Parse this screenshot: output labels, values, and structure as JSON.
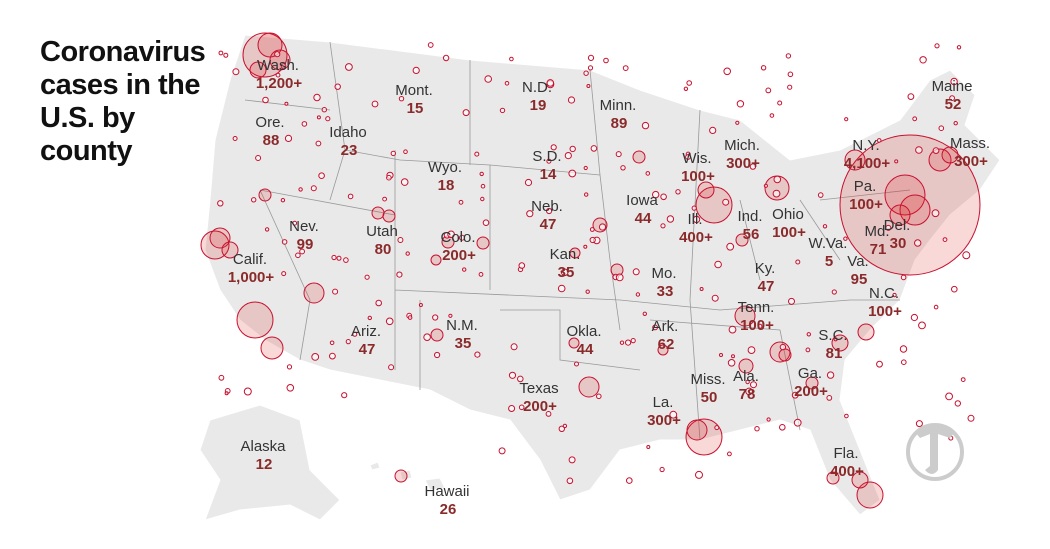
{
  "title": "Coronavirus cases in the U.S. by county",
  "states": [
    {
      "name": "Wash.",
      "count": "1,200+"
    },
    {
      "name": "Ore.",
      "count": "88"
    },
    {
      "name": "Idaho",
      "count": "23"
    },
    {
      "name": "Mont.",
      "count": "15"
    },
    {
      "name": "N.D.",
      "count": "19"
    },
    {
      "name": "Minn.",
      "count": "89"
    },
    {
      "name": "S.D.",
      "count": "14"
    },
    {
      "name": "Wyo.",
      "count": "18"
    },
    {
      "name": "Neb.",
      "count": "47"
    },
    {
      "name": "Iowa",
      "count": "44"
    },
    {
      "name": "Wis.",
      "count": "100+"
    },
    {
      "name": "Mich.",
      "count": "300+"
    },
    {
      "name": "N.Y.",
      "count": "4,100+"
    },
    {
      "name": "Maine",
      "count": "52"
    },
    {
      "name": "Mass.",
      "count": "300+"
    },
    {
      "name": "Pa.",
      "count": "100+"
    },
    {
      "name": "Del.",
      "count": "30"
    },
    {
      "name": "Md.",
      "count": "71"
    },
    {
      "name": "Ohio",
      "count": "100+"
    },
    {
      "name": "Ind.",
      "count": "56"
    },
    {
      "name": "Ill.",
      "count": "400+"
    },
    {
      "name": "Nev.",
      "count": "99"
    },
    {
      "name": "Utah",
      "count": "80"
    },
    {
      "name": "Colo.",
      "count": "200+"
    },
    {
      "name": "Calif.",
      "count": "1,000+"
    },
    {
      "name": "Kan.",
      "count": "35"
    },
    {
      "name": "Mo.",
      "count": "33"
    },
    {
      "name": "Ky.",
      "count": "47"
    },
    {
      "name": "W.Va.",
      "count": "5"
    },
    {
      "name": "Va.",
      "count": "95"
    },
    {
      "name": "N.C.",
      "count": "100+"
    },
    {
      "name": "Tenn.",
      "count": "100+"
    },
    {
      "name": "Ariz.",
      "count": "47"
    },
    {
      "name": "N.M.",
      "count": "35"
    },
    {
      "name": "Okla.",
      "count": "44"
    },
    {
      "name": "Ark.",
      "count": "62"
    },
    {
      "name": "S.C.",
      "count": "81"
    },
    {
      "name": "Miss.",
      "count": "50"
    },
    {
      "name": "Ala.",
      "count": "78"
    },
    {
      "name": "Ga.",
      "count": "200+"
    },
    {
      "name": "Texas",
      "count": "200+"
    },
    {
      "name": "La.",
      "count": "300+"
    },
    {
      "name": "Fla.",
      "count": "400+"
    },
    {
      "name": "Alaska",
      "count": "12"
    },
    {
      "name": "Hawaii",
      "count": "26"
    }
  ]
}
